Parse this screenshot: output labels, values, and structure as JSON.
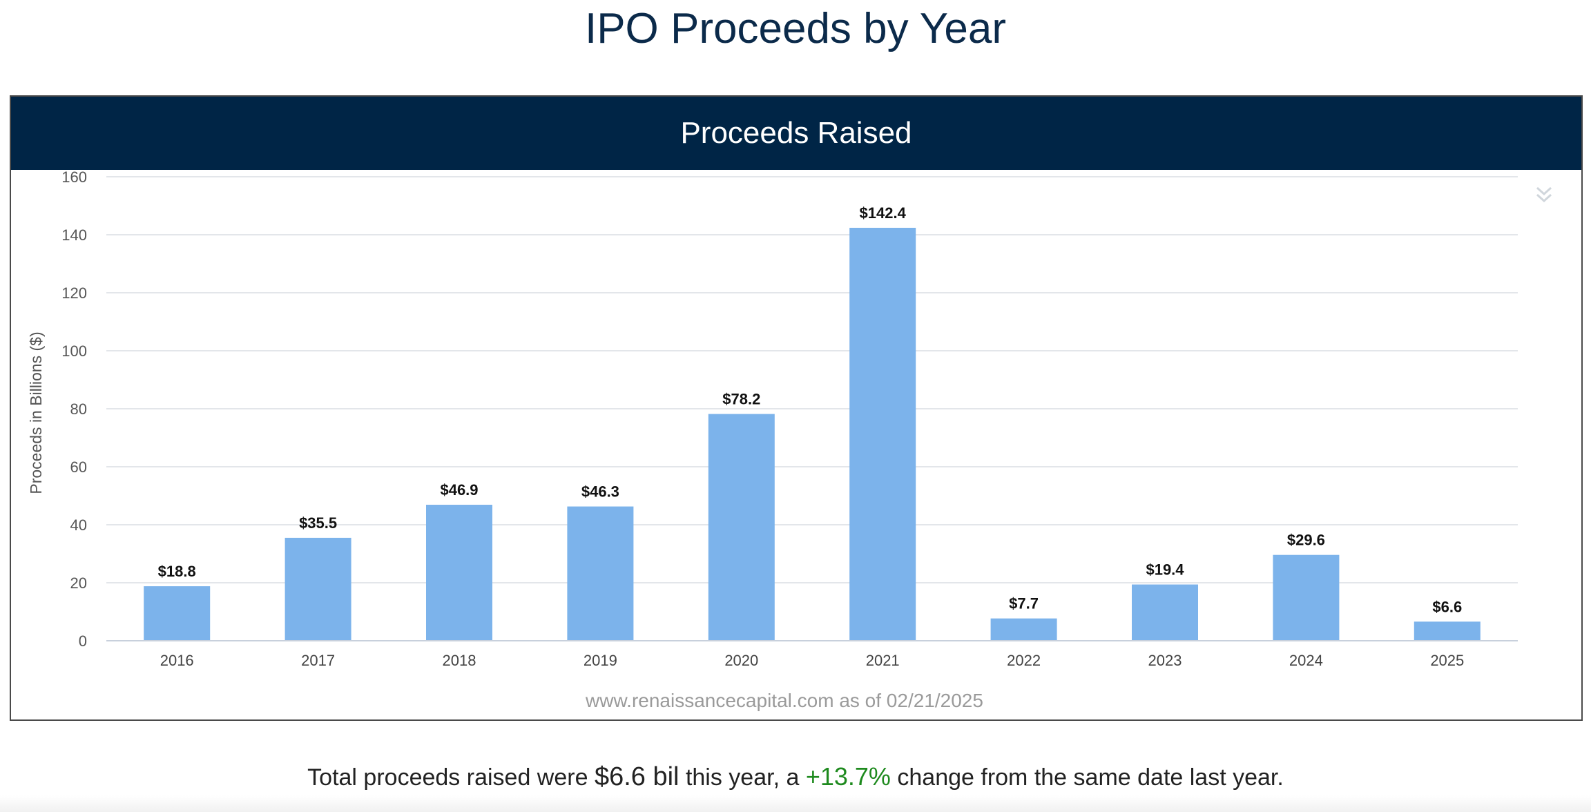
{
  "page": {
    "title": "IPO Proceeds by Year"
  },
  "panel": {
    "header": "Proceeds Raised",
    "menu_icon": "double-chevron-down-icon"
  },
  "chart_data": {
    "type": "bar",
    "categories": [
      "2016",
      "2017",
      "2018",
      "2019",
      "2020",
      "2021",
      "2022",
      "2023",
      "2024",
      "2025"
    ],
    "values": [
      18.8,
      35.5,
      46.9,
      46.3,
      78.2,
      142.4,
      7.7,
      19.4,
      29.6,
      6.6
    ],
    "data_labels": [
      "$18.8",
      "$35.5",
      "$46.9",
      "$46.3",
      "$78.2",
      "$142.4",
      "$7.7",
      "$19.4",
      "$29.6",
      "$6.6"
    ],
    "ylabel": "Proceeds in Billions ($)",
    "xlabel": "",
    "ylim": [
      0,
      160
    ],
    "yticks": [
      0,
      20,
      40,
      60,
      80,
      100,
      120,
      140,
      160
    ],
    "grid": true,
    "bar_color": "#7cb3eb",
    "credit": "www.renaissancecapital.com as of 02/21/2025"
  },
  "summary": {
    "prefix": "Total proceeds raised were",
    "amount": "$6.6 bil",
    "middle": "this year, a",
    "change": "+13.7%",
    "suffix": "change from the same date last year."
  },
  "colors": {
    "header_bg": "#002546",
    "title": "#0b2a4a",
    "positive_change": "#1e8a1e"
  }
}
